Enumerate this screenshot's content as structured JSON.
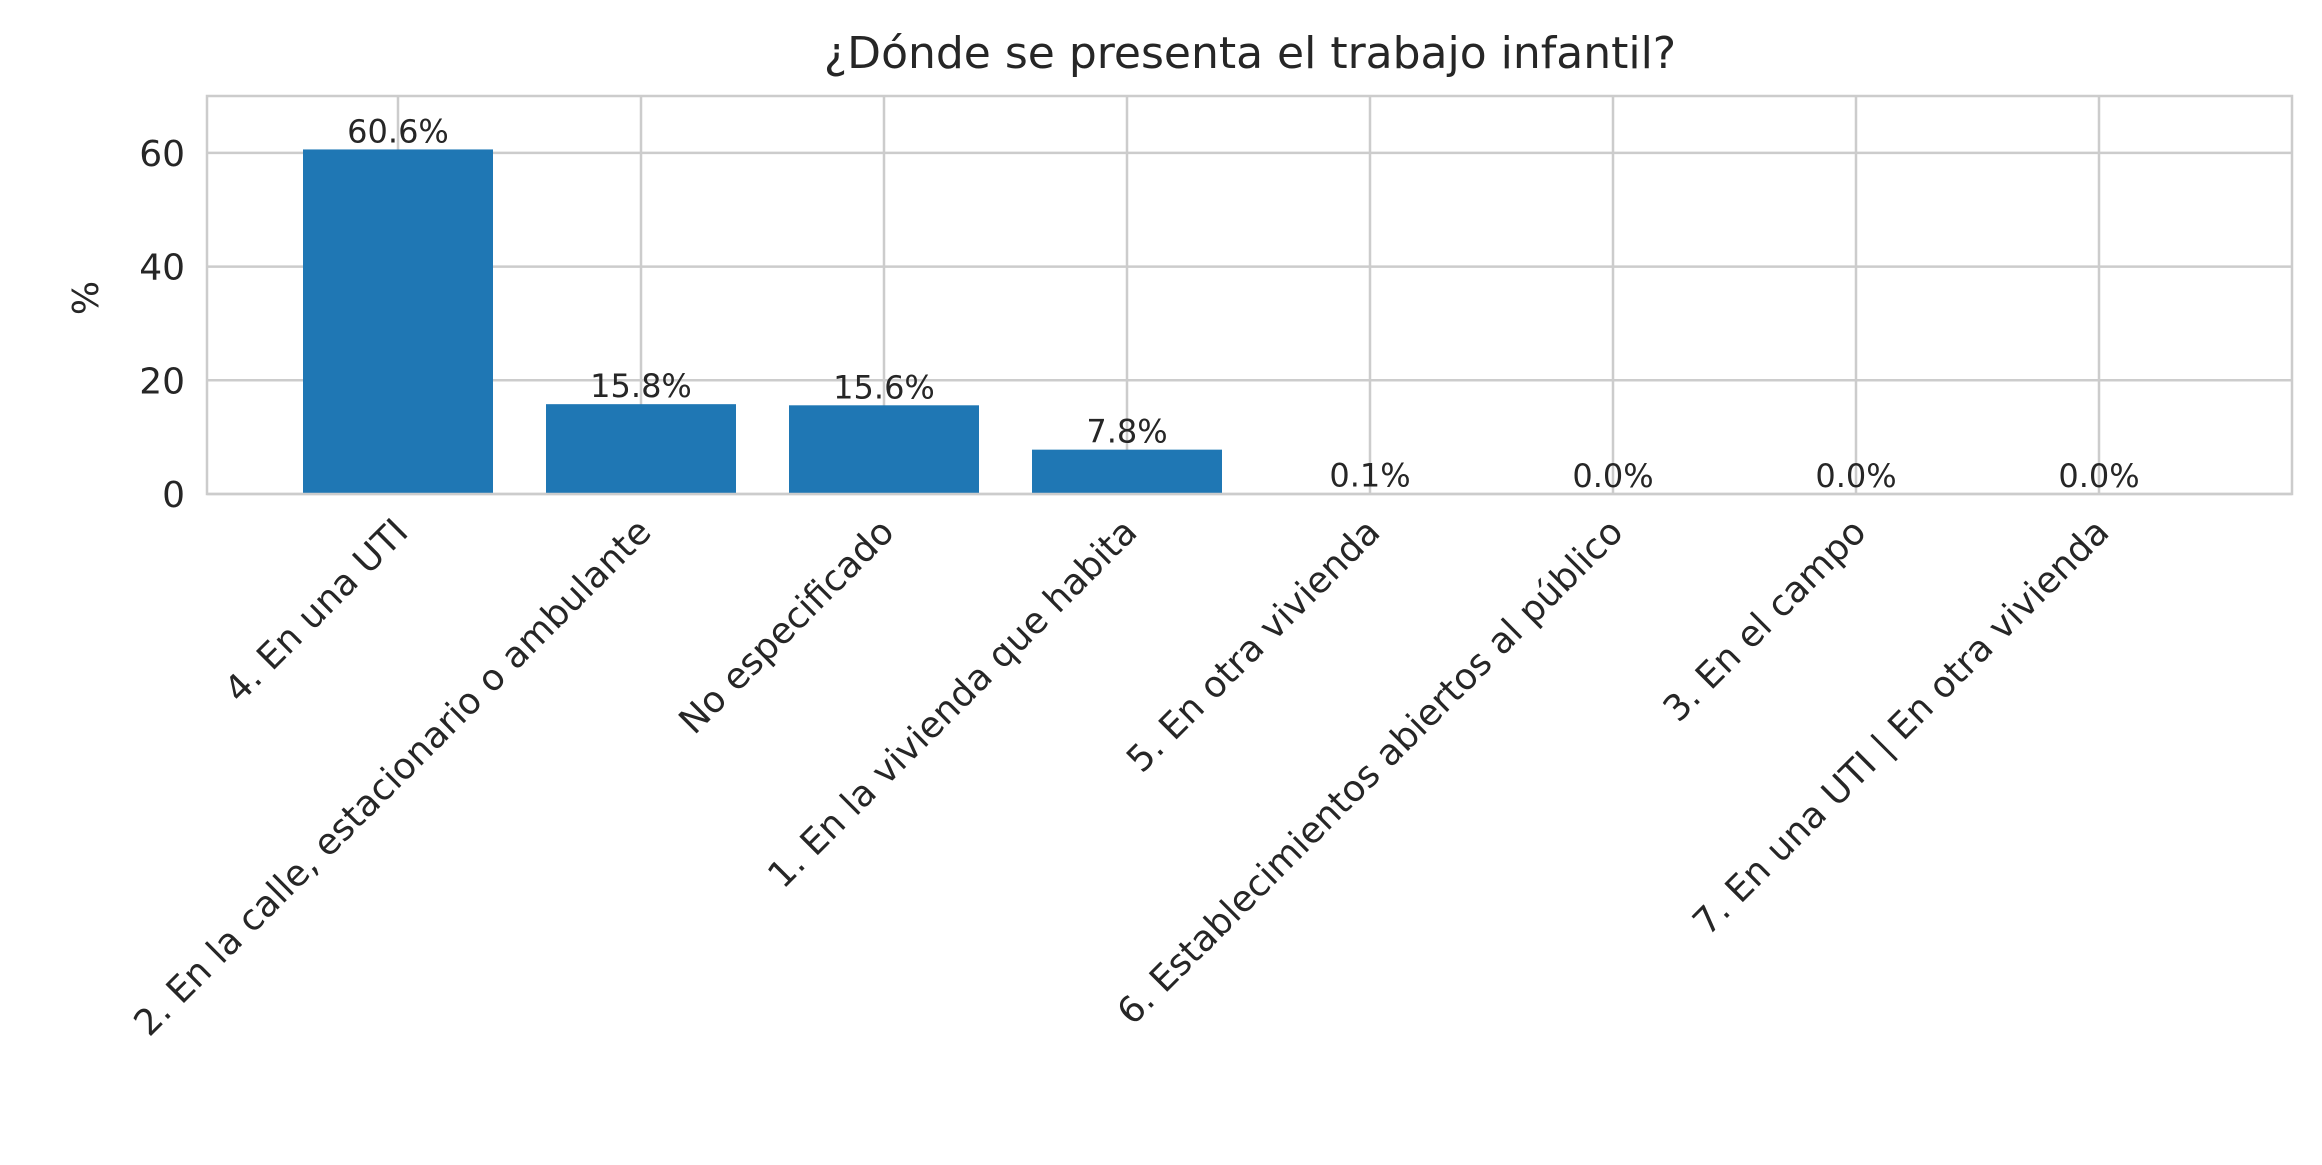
{
  "chart_data": {
    "type": "bar",
    "title": "¿Dónde se presenta el trabajo infantil?",
    "xlabel": "",
    "ylabel": "%",
    "ylim": [
      0,
      70
    ],
    "yticks": [
      0,
      20,
      40,
      60
    ],
    "grid": true,
    "categories": [
      "4. En una UTI",
      "2. En la calle, estacionario o ambulante",
      "No especificado",
      "1. En la vivienda que habita",
      "5. En otra vivienda",
      "6. Establecimientos abiertos al público",
      "3. En el campo",
      "7. En una UTI | En otra vivienda"
    ],
    "values": [
      60.6,
      15.8,
      15.6,
      7.8,
      0.1,
      0.0,
      0.0,
      0.0
    ],
    "data_labels": [
      "60.6%",
      "15.8%",
      "15.6%",
      "7.8%",
      "0.1%",
      "0.0%",
      "0.0%",
      "0.0%"
    ],
    "bar_color": "#1f77b4"
  }
}
